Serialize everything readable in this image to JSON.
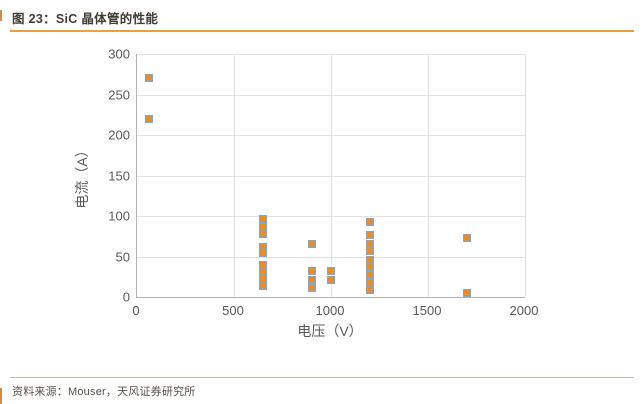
{
  "header": {
    "title": "图 23：SiC 晶体管的性能"
  },
  "footer": {
    "source": "资料来源：Mouser，天风证券研究所"
  },
  "colors": {
    "accent_line": "#e8a13c",
    "marker_fill": "#e2902f",
    "marker_stroke": "#7fa7d6",
    "edge_mark": "#cd8f4a"
  },
  "chart_data": {
    "type": "scatter",
    "title": "SiC 晶体管的性能",
    "xlabel": "电压（V）",
    "ylabel": "电流（A）",
    "xlim": [
      0,
      2000
    ],
    "ylim": [
      0,
      300
    ],
    "x_ticks": [
      0,
      500,
      1000,
      1500,
      2000
    ],
    "y_ticks": [
      0,
      50,
      100,
      150,
      200,
      250,
      300
    ],
    "grid": true,
    "legend": "none",
    "marker": {
      "shape": "square",
      "size": 8
    },
    "points": [
      {
        "x": 60,
        "y": 270
      },
      {
        "x": 60,
        "y": 220
      },
      {
        "x": 650,
        "y": 96
      },
      {
        "x": 650,
        "y": 87
      },
      {
        "x": 650,
        "y": 78
      },
      {
        "x": 650,
        "y": 62
      },
      {
        "x": 650,
        "y": 54
      },
      {
        "x": 650,
        "y": 40
      },
      {
        "x": 650,
        "y": 31
      },
      {
        "x": 650,
        "y": 22
      },
      {
        "x": 650,
        "y": 13
      },
      {
        "x": 900,
        "y": 65
      },
      {
        "x": 900,
        "y": 32
      },
      {
        "x": 900,
        "y": 21
      },
      {
        "x": 900,
        "y": 11
      },
      {
        "x": 1000,
        "y": 32
      },
      {
        "x": 1000,
        "y": 21
      },
      {
        "x": 1200,
        "y": 93
      },
      {
        "x": 1200,
        "y": 76
      },
      {
        "x": 1200,
        "y": 66
      },
      {
        "x": 1200,
        "y": 57
      },
      {
        "x": 1200,
        "y": 46
      },
      {
        "x": 1200,
        "y": 37
      },
      {
        "x": 1200,
        "y": 27
      },
      {
        "x": 1200,
        "y": 17
      },
      {
        "x": 1200,
        "y": 9
      },
      {
        "x": 1700,
        "y": 73
      },
      {
        "x": 1700,
        "y": 5
      }
    ]
  }
}
